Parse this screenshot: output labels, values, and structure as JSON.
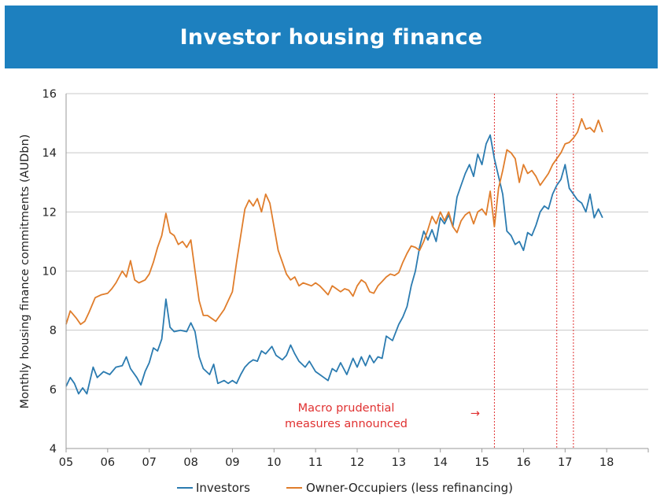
{
  "chart_data": {
    "type": "line",
    "title": "Investor housing finance",
    "ylabel": "Monthly housing finance commitments (AUDbn)",
    "xlabel": "",
    "xlim": [
      2005,
      2019
    ],
    "ylim": [
      4,
      16
    ],
    "x_ticks": [
      {
        "value": 2005,
        "label": "05"
      },
      {
        "value": 2006,
        "label": "06"
      },
      {
        "value": 2007,
        "label": "07"
      },
      {
        "value": 2008,
        "label": "08"
      },
      {
        "value": 2009,
        "label": "09"
      },
      {
        "value": 2010,
        "label": "10"
      },
      {
        "value": 2011,
        "label": "11"
      },
      {
        "value": 2012,
        "label": "12"
      },
      {
        "value": 2013,
        "label": "13"
      },
      {
        "value": 2014,
        "label": "14"
      },
      {
        "value": 2015,
        "label": "15"
      },
      {
        "value": 2016,
        "label": "16"
      },
      {
        "value": 2017,
        "label": "17"
      },
      {
        "value": 2018,
        "label": "18"
      }
    ],
    "y_ticks": [
      4,
      6,
      8,
      10,
      12,
      14,
      16
    ],
    "grid": "horizontal",
    "legend_position": "bottom",
    "series": [
      {
        "name": "Investors",
        "color": "#2b7bb0",
        "points": [
          [
            2005.0,
            6.1
          ],
          [
            2005.1,
            6.4
          ],
          [
            2005.2,
            6.2
          ],
          [
            2005.3,
            5.85
          ],
          [
            2005.4,
            6.05
          ],
          [
            2005.5,
            5.85
          ],
          [
            2005.65,
            6.75
          ],
          [
            2005.75,
            6.4
          ],
          [
            2005.9,
            6.6
          ],
          [
            2006.05,
            6.5
          ],
          [
            2006.2,
            6.75
          ],
          [
            2006.35,
            6.8
          ],
          [
            2006.45,
            7.1
          ],
          [
            2006.55,
            6.7
          ],
          [
            2006.7,
            6.4
          ],
          [
            2006.8,
            6.15
          ],
          [
            2006.9,
            6.6
          ],
          [
            2007.0,
            6.9
          ],
          [
            2007.1,
            7.4
          ],
          [
            2007.2,
            7.3
          ],
          [
            2007.3,
            7.7
          ],
          [
            2007.4,
            9.05
          ],
          [
            2007.5,
            8.1
          ],
          [
            2007.6,
            7.95
          ],
          [
            2007.75,
            8.0
          ],
          [
            2007.9,
            7.95
          ],
          [
            2008.0,
            8.25
          ],
          [
            2008.1,
            7.95
          ],
          [
            2008.2,
            7.1
          ],
          [
            2008.3,
            6.7
          ],
          [
            2008.45,
            6.5
          ],
          [
            2008.55,
            6.85
          ],
          [
            2008.65,
            6.2
          ],
          [
            2008.8,
            6.3
          ],
          [
            2008.9,
            6.2
          ],
          [
            2009.0,
            6.3
          ],
          [
            2009.1,
            6.2
          ],
          [
            2009.2,
            6.5
          ],
          [
            2009.3,
            6.75
          ],
          [
            2009.4,
            6.9
          ],
          [
            2009.5,
            7.0
          ],
          [
            2009.6,
            6.95
          ],
          [
            2009.7,
            7.3
          ],
          [
            2009.8,
            7.2
          ],
          [
            2009.95,
            7.45
          ],
          [
            2010.05,
            7.15
          ],
          [
            2010.2,
            7.0
          ],
          [
            2010.3,
            7.15
          ],
          [
            2010.4,
            7.5
          ],
          [
            2010.5,
            7.2
          ],
          [
            2010.6,
            6.95
          ],
          [
            2010.75,
            6.75
          ],
          [
            2010.85,
            6.95
          ],
          [
            2011.0,
            6.6
          ],
          [
            2011.1,
            6.5
          ],
          [
            2011.2,
            6.4
          ],
          [
            2011.3,
            6.3
          ],
          [
            2011.4,
            6.7
          ],
          [
            2011.5,
            6.6
          ],
          [
            2011.6,
            6.9
          ],
          [
            2011.75,
            6.5
          ],
          [
            2011.9,
            7.05
          ],
          [
            2012.0,
            6.75
          ],
          [
            2012.1,
            7.1
          ],
          [
            2012.2,
            6.8
          ],
          [
            2012.3,
            7.15
          ],
          [
            2012.4,
            6.9
          ],
          [
            2012.5,
            7.1
          ],
          [
            2012.6,
            7.05
          ],
          [
            2012.7,
            7.8
          ],
          [
            2012.85,
            7.65
          ],
          [
            2013.0,
            8.2
          ],
          [
            2013.1,
            8.45
          ],
          [
            2013.2,
            8.8
          ],
          [
            2013.3,
            9.5
          ],
          [
            2013.4,
            10.0
          ],
          [
            2013.5,
            10.8
          ],
          [
            2013.6,
            11.35
          ],
          [
            2013.7,
            11.05
          ],
          [
            2013.8,
            11.4
          ],
          [
            2013.9,
            11.0
          ],
          [
            2014.0,
            11.8
          ],
          [
            2014.1,
            11.6
          ],
          [
            2014.2,
            11.9
          ],
          [
            2014.3,
            11.5
          ],
          [
            2014.4,
            12.5
          ],
          [
            2014.5,
            12.9
          ],
          [
            2014.6,
            13.3
          ],
          [
            2014.7,
            13.6
          ],
          [
            2014.8,
            13.2
          ],
          [
            2014.9,
            13.95
          ],
          [
            2015.0,
            13.6
          ],
          [
            2015.1,
            14.3
          ],
          [
            2015.2,
            14.6
          ],
          [
            2015.3,
            13.8
          ],
          [
            2015.4,
            13.2
          ],
          [
            2015.5,
            12.6
          ],
          [
            2015.6,
            11.35
          ],
          [
            2015.7,
            11.2
          ],
          [
            2015.8,
            10.9
          ],
          [
            2015.9,
            11.0
          ],
          [
            2016.0,
            10.7
          ],
          [
            2016.1,
            11.3
          ],
          [
            2016.2,
            11.2
          ],
          [
            2016.3,
            11.55
          ],
          [
            2016.4,
            12.0
          ],
          [
            2016.5,
            12.2
          ],
          [
            2016.6,
            12.1
          ],
          [
            2016.7,
            12.6
          ],
          [
            2016.8,
            12.9
          ],
          [
            2016.9,
            13.1
          ],
          [
            2017.0,
            13.6
          ],
          [
            2017.1,
            12.8
          ],
          [
            2017.2,
            12.6
          ],
          [
            2017.3,
            12.4
          ],
          [
            2017.4,
            12.3
          ],
          [
            2017.5,
            12.0
          ],
          [
            2017.6,
            12.6
          ],
          [
            2017.7,
            11.8
          ],
          [
            2017.8,
            12.1
          ],
          [
            2017.9,
            11.8
          ]
        ]
      },
      {
        "name": "Owner-Occupiers (less refinancing)",
        "color": "#e07d2b",
        "points": [
          [
            2005.0,
            8.2
          ],
          [
            2005.1,
            8.65
          ],
          [
            2005.25,
            8.4
          ],
          [
            2005.35,
            8.2
          ],
          [
            2005.45,
            8.3
          ],
          [
            2005.55,
            8.6
          ],
          [
            2005.7,
            9.1
          ],
          [
            2005.85,
            9.2
          ],
          [
            2006.0,
            9.25
          ],
          [
            2006.1,
            9.4
          ],
          [
            2006.2,
            9.6
          ],
          [
            2006.35,
            10.0
          ],
          [
            2006.45,
            9.8
          ],
          [
            2006.55,
            10.35
          ],
          [
            2006.65,
            9.7
          ],
          [
            2006.75,
            9.6
          ],
          [
            2006.9,
            9.7
          ],
          [
            2007.0,
            9.9
          ],
          [
            2007.1,
            10.3
          ],
          [
            2007.2,
            10.8
          ],
          [
            2007.3,
            11.2
          ],
          [
            2007.4,
            11.95
          ],
          [
            2007.5,
            11.3
          ],
          [
            2007.6,
            11.2
          ],
          [
            2007.7,
            10.9
          ],
          [
            2007.8,
            11.0
          ],
          [
            2007.9,
            10.8
          ],
          [
            2008.0,
            11.05
          ],
          [
            2008.1,
            10.0
          ],
          [
            2008.2,
            9.0
          ],
          [
            2008.3,
            8.5
          ],
          [
            2008.4,
            8.5
          ],
          [
            2008.5,
            8.4
          ],
          [
            2008.6,
            8.3
          ],
          [
            2008.7,
            8.5
          ],
          [
            2008.8,
            8.7
          ],
          [
            2008.9,
            9.0
          ],
          [
            2009.0,
            9.3
          ],
          [
            2009.1,
            10.3
          ],
          [
            2009.2,
            11.2
          ],
          [
            2009.3,
            12.1
          ],
          [
            2009.4,
            12.4
          ],
          [
            2009.5,
            12.2
          ],
          [
            2009.6,
            12.45
          ],
          [
            2009.7,
            12.0
          ],
          [
            2009.8,
            12.6
          ],
          [
            2009.9,
            12.3
          ],
          [
            2010.0,
            11.5
          ],
          [
            2010.1,
            10.7
          ],
          [
            2010.2,
            10.3
          ],
          [
            2010.3,
            9.9
          ],
          [
            2010.4,
            9.7
          ],
          [
            2010.5,
            9.8
          ],
          [
            2010.6,
            9.5
          ],
          [
            2010.7,
            9.6
          ],
          [
            2010.8,
            9.55
          ],
          [
            2010.9,
            9.5
          ],
          [
            2011.0,
            9.6
          ],
          [
            2011.1,
            9.5
          ],
          [
            2011.2,
            9.35
          ],
          [
            2011.3,
            9.2
          ],
          [
            2011.4,
            9.5
          ],
          [
            2011.5,
            9.4
          ],
          [
            2011.6,
            9.3
          ],
          [
            2011.7,
            9.4
          ],
          [
            2011.8,
            9.35
          ],
          [
            2011.9,
            9.15
          ],
          [
            2012.0,
            9.5
          ],
          [
            2012.1,
            9.7
          ],
          [
            2012.2,
            9.6
          ],
          [
            2012.3,
            9.3
          ],
          [
            2012.4,
            9.25
          ],
          [
            2012.5,
            9.5
          ],
          [
            2012.6,
            9.65
          ],
          [
            2012.7,
            9.8
          ],
          [
            2012.8,
            9.9
          ],
          [
            2012.9,
            9.85
          ],
          [
            2013.0,
            9.95
          ],
          [
            2013.1,
            10.3
          ],
          [
            2013.2,
            10.6
          ],
          [
            2013.3,
            10.85
          ],
          [
            2013.4,
            10.8
          ],
          [
            2013.5,
            10.7
          ],
          [
            2013.6,
            11.0
          ],
          [
            2013.7,
            11.4
          ],
          [
            2013.8,
            11.85
          ],
          [
            2013.9,
            11.6
          ],
          [
            2014.0,
            12.0
          ],
          [
            2014.1,
            11.7
          ],
          [
            2014.2,
            12.0
          ],
          [
            2014.3,
            11.5
          ],
          [
            2014.4,
            11.3
          ],
          [
            2014.5,
            11.7
          ],
          [
            2014.6,
            11.9
          ],
          [
            2014.7,
            12.0
          ],
          [
            2014.8,
            11.6
          ],
          [
            2014.9,
            12.0
          ],
          [
            2015.0,
            12.1
          ],
          [
            2015.1,
            11.9
          ],
          [
            2015.2,
            12.7
          ],
          [
            2015.3,
            11.5
          ],
          [
            2015.4,
            12.8
          ],
          [
            2015.5,
            13.4
          ],
          [
            2015.6,
            14.1
          ],
          [
            2015.7,
            14.0
          ],
          [
            2015.8,
            13.8
          ],
          [
            2015.9,
            13.0
          ],
          [
            2016.0,
            13.6
          ],
          [
            2016.1,
            13.3
          ],
          [
            2016.2,
            13.4
          ],
          [
            2016.3,
            13.2
          ],
          [
            2016.4,
            12.9
          ],
          [
            2016.5,
            13.1
          ],
          [
            2016.6,
            13.3
          ],
          [
            2016.7,
            13.6
          ],
          [
            2016.8,
            13.8
          ],
          [
            2016.9,
            14.0
          ],
          [
            2017.0,
            14.3
          ],
          [
            2017.1,
            14.35
          ],
          [
            2017.2,
            14.5
          ],
          [
            2017.3,
            14.7
          ],
          [
            2017.4,
            15.15
          ],
          [
            2017.5,
            14.8
          ],
          [
            2017.6,
            14.85
          ],
          [
            2017.7,
            14.7
          ],
          [
            2017.8,
            15.1
          ],
          [
            2017.9,
            14.7
          ]
        ]
      }
    ],
    "vertical_markers": [
      2015.3,
      2016.8,
      2017.2
    ],
    "marker_color": "#e03131",
    "annotation": {
      "lines": [
        "Macro prudential",
        "measures announced"
      ],
      "arrow": "→"
    }
  }
}
